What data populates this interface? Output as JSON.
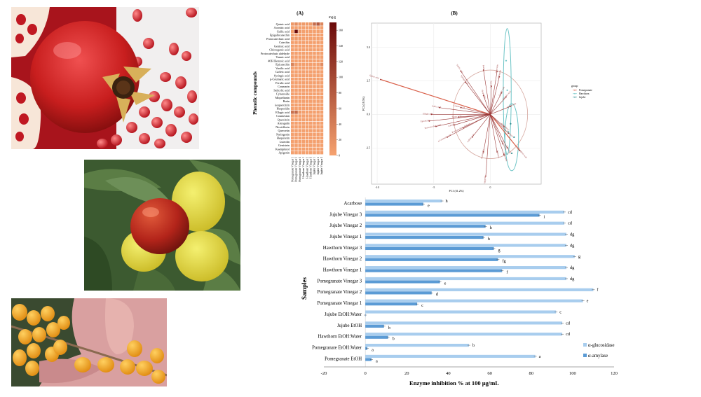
{
  "photos": [
    {
      "name": "Pomegranate",
      "caption": ""
    },
    {
      "name": "Jujube",
      "caption": ""
    },
    {
      "name": "Sea buckthorn",
      "caption": ""
    }
  ],
  "colors": {
    "heat_low": "#f6a26f",
    "heat_high": "#6b0a0a",
    "loading_arrow": "#9b3a3a",
    "pca_circle": "#d6a8a0",
    "pomegranate_group": "#e0604a",
    "hawthorn_group": "#6cc4c6",
    "jujube_group": "#2a8a8c",
    "glucosidase_bar": "#a8cdee",
    "amylase_bar": "#5b9bd5"
  },
  "chart_data": [
    {
      "type": "heatmap",
      "title": "(A)",
      "ylabel": "Phenolic compounds",
      "colorbar_label": "mg/g",
      "colorbar_ticks": [
        0,
        20,
        40,
        60,
        80,
        100,
        120,
        140,
        160
      ],
      "colorbar_range": [
        0,
        170
      ],
      "rows": [
        "Quinic acid",
        "Aconitic acid",
        "Gallic acid",
        "Epigallocatechin",
        "Protocatechuic acid",
        "Catechin",
        "Gentisic acid",
        "Chlorogenic acid",
        "Protocatechuic aldehyde",
        "Tannic acid",
        "4OH Benzoic acid",
        "Epicatechin",
        "Vanilic acid",
        "Caffeic acid",
        "Syringic acid",
        "p-Coumaric acid",
        "Ferulic acid",
        "Coumarin",
        "Salicylic acid",
        "Cynaroside",
        "Miquelianin",
        "Rutin",
        "isoquercitrin",
        "Hesperidin",
        "Ellagic acid",
        "Coumestan",
        "Quercitrin",
        "Astragalin",
        "Nicotiflorin",
        "Quercetin",
        "Naringenin",
        "Hesperetin",
        "Luteolin",
        "Genistein",
        "Kaempferol",
        "Apigenin"
      ],
      "columns": [
        "Pomegranate Vinegar 1",
        "Pomegranate Vinegar 2",
        "Pomegranate Vinegar 3",
        "Hawthorn Vinegar 1",
        "Hawthorn Vinegar 2",
        "Hawthorn Vinegar 3",
        "Jujube Vinegar 1",
        "Jujube Vinegar 2",
        "Jujube Vinegar 3"
      ],
      "column_tick_labels": [
        "Pomegranate Vinegar 1",
        "Pomegranate Vinegar 2",
        "Pomegranate Vinegar 3",
        "Hawthorn Vinegar 1",
        "Hawthorn Vinegar 2",
        "Hawthorn Vinegar 3",
        "Jujube Vinegar 1",
        "Jujube Vinegar 2",
        "Jujube Vinegar 3"
      ],
      "values": [
        [
          10,
          20,
          8,
          8,
          8,
          8,
          60,
          80,
          30
        ],
        [
          2,
          2,
          2,
          2,
          2,
          2,
          2,
          2,
          2
        ],
        [
          5,
          170,
          10,
          2,
          2,
          2,
          2,
          2,
          2
        ],
        [
          2,
          2,
          2,
          2,
          2,
          2,
          2,
          2,
          2
        ],
        [
          8,
          10,
          8,
          3,
          3,
          3,
          3,
          3,
          3
        ],
        [
          3,
          3,
          3,
          3,
          3,
          3,
          3,
          3,
          3
        ],
        [
          2,
          2,
          2,
          2,
          2,
          2,
          2,
          2,
          2
        ],
        [
          2,
          2,
          2,
          2,
          2,
          2,
          2,
          2,
          2
        ],
        [
          2,
          2,
          2,
          2,
          2,
          2,
          2,
          2,
          2
        ],
        [
          2,
          2,
          2,
          2,
          2,
          2,
          2,
          2,
          2
        ],
        [
          2,
          2,
          2,
          2,
          2,
          2,
          2,
          2,
          2
        ],
        [
          35,
          5,
          5,
          3,
          3,
          3,
          3,
          3,
          25
        ],
        [
          2,
          2,
          2,
          2,
          2,
          2,
          2,
          2,
          2
        ],
        [
          2,
          2,
          2,
          2,
          2,
          2,
          2,
          2,
          2
        ],
        [
          2,
          2,
          2,
          2,
          2,
          2,
          2,
          2,
          2
        ],
        [
          2,
          2,
          2,
          2,
          2,
          2,
          2,
          2,
          2
        ],
        [
          2,
          2,
          2,
          2,
          2,
          2,
          2,
          2,
          2
        ],
        [
          2,
          2,
          2,
          2,
          2,
          2,
          2,
          2,
          2
        ],
        [
          2,
          2,
          2,
          2,
          2,
          2,
          2,
          2,
          2
        ],
        [
          2,
          2,
          2,
          2,
          2,
          2,
          2,
          2,
          2
        ],
        [
          2,
          2,
          2,
          2,
          2,
          2,
          2,
          2,
          2
        ],
        [
          2,
          2,
          2,
          2,
          2,
          2,
          2,
          2,
          2
        ],
        [
          2,
          2,
          2,
          2,
          2,
          2,
          2,
          2,
          2
        ],
        [
          2,
          2,
          2,
          2,
          2,
          2,
          2,
          2,
          2
        ],
        [
          55,
          60,
          8,
          2,
          2,
          2,
          2,
          2,
          2
        ],
        [
          2,
          2,
          2,
          2,
          2,
          2,
          2,
          2,
          2
        ],
        [
          2,
          2,
          2,
          2,
          2,
          2,
          2,
          2,
          2
        ],
        [
          2,
          2,
          2,
          2,
          2,
          2,
          2,
          2,
          2
        ],
        [
          2,
          2,
          2,
          2,
          2,
          2,
          2,
          2,
          2
        ],
        [
          2,
          2,
          2,
          2,
          2,
          2,
          2,
          2,
          2
        ],
        [
          2,
          2,
          2,
          2,
          2,
          2,
          2,
          2,
          2
        ],
        [
          2,
          2,
          2,
          2,
          2,
          2,
          2,
          2,
          2
        ],
        [
          2,
          2,
          2,
          2,
          2,
          2,
          2,
          2,
          2
        ],
        [
          2,
          2,
          2,
          2,
          2,
          2,
          2,
          2,
          2
        ],
        [
          2,
          2,
          2,
          2,
          2,
          2,
          2,
          2,
          2
        ],
        [
          2,
          2,
          2,
          2,
          2,
          2,
          2,
          2,
          2
        ]
      ]
    },
    {
      "type": "scatter",
      "title": "(B)",
      "xlabel": "PC1 (31.2%)",
      "ylabel": "PC2 (18.5%)",
      "xlim": [
        -10.5,
        4.5
      ],
      "ylim": [
        -5.2,
        6.8
      ],
      "xticks": [
        -10,
        -5,
        0
      ],
      "yticks": [
        -2.5,
        0.0,
        2.5,
        5.0
      ],
      "grid": true,
      "legend_title": "group",
      "legend_position": "right",
      "legend": [
        "Pomegranate",
        "Hawthorn",
        "Jujube"
      ],
      "correlation_circle_radius": 3.3,
      "loadings": [
        {
          "label": "Quinic acid",
          "x": -9.7,
          "y": 2.6
        },
        {
          "label": "Chlorogenic acid",
          "x": 2.6,
          "y": -2.7
        },
        {
          "label": "Gallic acid",
          "x": -4.5,
          "y": 0.5
        },
        {
          "label": "Ellagic acid",
          "x": -5.2,
          "y": 0.0
        },
        {
          "label": "Epicatechin",
          "x": -5.4,
          "y": -0.5
        },
        {
          "label": "Protocatechuic acid",
          "x": -4.8,
          "y": -0.9
        },
        {
          "label": "p-Coumaric acid",
          "x": -3.8,
          "y": -1.7
        },
        {
          "label": "Catechin",
          "x": -3.2,
          "y": -0.8
        },
        {
          "label": "Tannic acid",
          "x": -2.8,
          "y": -0.2
        },
        {
          "label": "Gentisic acid",
          "x": -2.6,
          "y": 0.5
        },
        {
          "label": "Protocatechuic aldehyde",
          "x": -2.4,
          "y": -1.0
        },
        {
          "label": "Caffeic acid",
          "x": -1.6,
          "y": -1.7
        },
        {
          "label": "Naringenin",
          "x": -0.6,
          "y": -2.8
        },
        {
          "label": "Apigenin",
          "x": -0.4,
          "y": -4.6
        },
        {
          "label": "Vanilic acid",
          "x": -2.6,
          "y": 3.2
        },
        {
          "label": "Syringic acid",
          "x": -2.2,
          "y": 2.4
        },
        {
          "label": "Rutin",
          "x": -0.6,
          "y": 3.3
        },
        {
          "label": "Hesperidin",
          "x": -0.6,
          "y": 1.4
        },
        {
          "label": "Luteolin",
          "x": 0.1,
          "y": 2.1
        },
        {
          "label": "Quercitrin",
          "x": 0.6,
          "y": 3.2
        },
        {
          "label": "Astragalin",
          "x": 0.8,
          "y": 2.8
        },
        {
          "label": "Ferulic acid",
          "x": 1.0,
          "y": 1.6
        },
        {
          "label": "Salicylic acid",
          "x": 1.4,
          "y": 1.3
        },
        {
          "label": "Cynaroside",
          "x": 1.8,
          "y": 0.6
        },
        {
          "label": "Kaempferol",
          "x": 1.2,
          "y": -0.9
        },
        {
          "label": "Coumarin",
          "x": 1.6,
          "y": -1.4
        },
        {
          "label": "Genistein",
          "x": 0.6,
          "y": -2.8
        },
        {
          "label": "Hesperetin",
          "x": 1.2,
          "y": -3.0
        },
        {
          "label": "Quercetin",
          "x": 1.5,
          "y": -2.5
        },
        {
          "label": "Nicotiflorin",
          "x": 1.1,
          "y": -2.2
        }
      ],
      "points": [
        {
          "group": "Hawthorn",
          "x": 1.4,
          "y": 4.0
        },
        {
          "group": "Hawthorn",
          "x": 1.5,
          "y": 1.8
        },
        {
          "group": "Hawthorn",
          "x": 1.6,
          "y": -1.3
        },
        {
          "group": "Jujube",
          "x": 1.8,
          "y": -0.7
        },
        {
          "group": "Jujube",
          "x": 2.1,
          "y": -1.7
        },
        {
          "group": "Jujube",
          "x": 1.9,
          "y": -2.9
        }
      ],
      "ellipses": [
        {
          "group": "Hawthorn",
          "cx": 1.5,
          "cy": 1.7,
          "rx": 0.35,
          "ry": 4.7
        },
        {
          "group": "Jujube",
          "cx": 1.9,
          "cy": -1.7,
          "rx": 0.6,
          "ry": 2.5
        }
      ]
    },
    {
      "type": "bar",
      "orientation": "horizontal",
      "xlabel": "Enzyme inhibition % at 100 µg/mL",
      "ylabel": "Samples",
      "xlim": [
        -20,
        120
      ],
      "xticks": [
        -20,
        0,
        20,
        40,
        60,
        80,
        100,
        120
      ],
      "legend_position": "bottom-right",
      "categories": [
        "Acarbose",
        "Jujube Vinegar 3",
        "Jujube Vinegar 2",
        "Jujube Vinegar 1",
        "Hawthorn Vinegar 3",
        "Hawthorn Vinegar 2",
        "Hawthorn Vinegar 1",
        "Pomegranate Vinegar 3",
        "Pomegranate Vinegar 2",
        "Pomegranate Vinegar 1",
        "Jujube EtOH:Water",
        "Jujube EtOH",
        "Hawthorn  EtOH:Water",
        "Pomegranate EtOH:Water",
        "Pomegranate EtOH"
      ],
      "series": [
        {
          "name": "α-glucosidase",
          "values": [
            37,
            96,
            96,
            97,
            97,
            101,
            97,
            97,
            110,
            105,
            92,
            95,
            95,
            50,
            82
          ],
          "labels": [
            "h",
            "cd",
            "cd",
            "dg",
            "dg",
            "g",
            "dg",
            "dg",
            "f",
            "e",
            "c",
            "cd",
            "cd",
            "b",
            "a"
          ]
        },
        {
          "name": "α-amylase",
          "values": [
            28,
            84,
            58,
            57,
            62,
            64,
            66,
            36,
            32,
            25,
            0,
            9,
            11,
            1,
            3
          ],
          "labels": [
            "e",
            "i",
            "h",
            "h",
            "g",
            "fg",
            "f",
            "e",
            "d",
            "c",
            "",
            "b",
            "b",
            "a",
            "a"
          ]
        }
      ]
    }
  ]
}
